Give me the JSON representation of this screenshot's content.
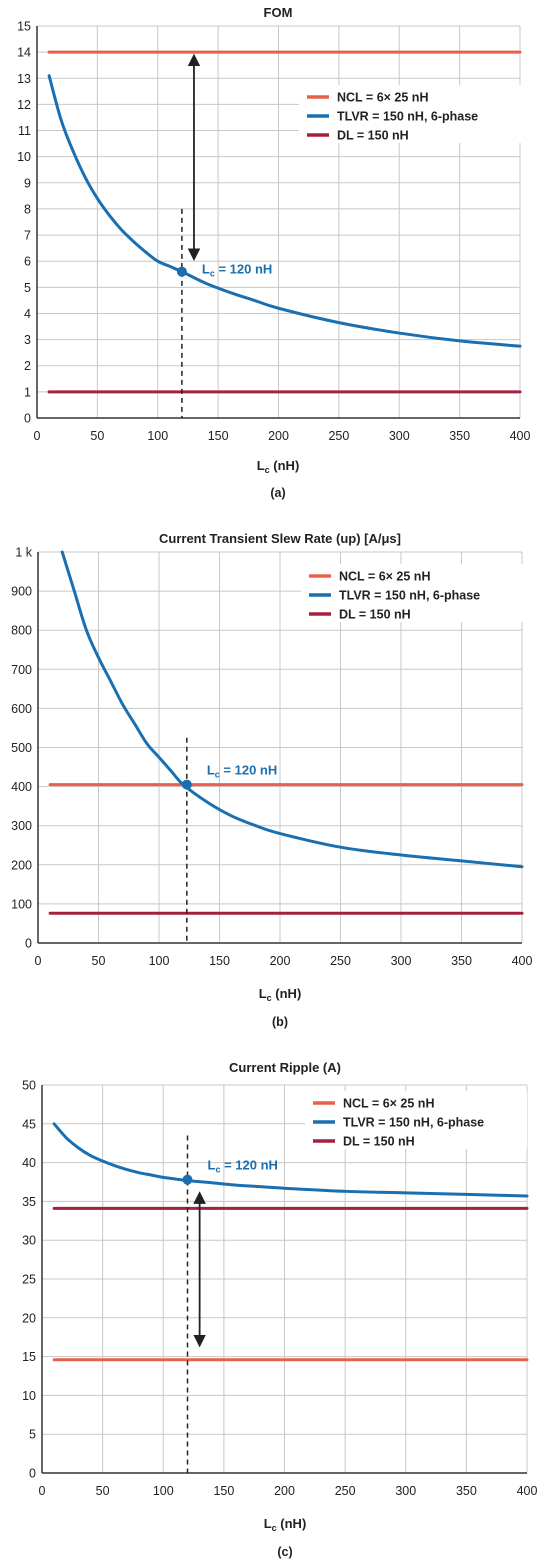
{
  "colors": {
    "ncl": "#e8604c",
    "tlvr": "#1a6fb0",
    "dl": "#a3213f",
    "grid": "#c8c8c8",
    "axis": "#333333",
    "arrow": "#222222"
  },
  "legend": [
    "NCL = 6× 25 nH",
    "TLVR = 150 nH, 6-phase",
    "DL = 150 nH"
  ],
  "chart_data": [
    {
      "type": "line",
      "title": "FOM",
      "xlabel_main": "L",
      "xlabel_sub": "c",
      "xlabel_unit": " (nH)",
      "caption": "(a)",
      "xlim": [
        0,
        400
      ],
      "ylim": [
        0,
        15
      ],
      "xticks": [
        "0",
        "50",
        "100",
        "150",
        "200",
        "250",
        "300",
        "350",
        "400"
      ],
      "yticks": [
        "0",
        "1",
        "2",
        "3",
        "4",
        "5",
        "6",
        "7",
        "8",
        "9",
        "10",
        "11",
        "12",
        "13",
        "14",
        "15"
      ],
      "grid": true,
      "legend_position": "top-right",
      "series": [
        {
          "name": "NCL = 6× 25 nH",
          "x": [
            10,
            400
          ],
          "y": [
            14,
            14
          ]
        },
        {
          "name": "TLVR = 150 nH, 6-phase",
          "x": [
            10,
            20,
            30,
            40,
            50,
            60,
            70,
            80,
            90,
            100,
            110,
            120,
            140,
            160,
            180,
            200,
            250,
            300,
            350,
            400
          ],
          "y": [
            13.1,
            11.4,
            10.2,
            9.2,
            8.4,
            7.75,
            7.2,
            6.75,
            6.35,
            6.0,
            5.8,
            5.6,
            5.15,
            4.8,
            4.5,
            4.2,
            3.65,
            3.25,
            2.95,
            2.75
          ]
        },
        {
          "name": "DL = 150 nH",
          "x": [
            10,
            400
          ],
          "y": [
            1,
            1
          ]
        }
      ],
      "marker": {
        "x": 120,
        "y": 5.6,
        "label_main": "L",
        "label_sub": "c",
        "label_rest": " = 120 nH"
      },
      "dashed_line": {
        "x": 120,
        "y_top": 8
      },
      "arrow": {
        "x": 130,
        "y_from": 14,
        "y_to": 5.95
      }
    },
    {
      "type": "line",
      "title": "Current Transient Slew Rate (up) [A/μs]",
      "xlabel_main": "L",
      "xlabel_sub": "c",
      "xlabel_unit": " (nH)",
      "caption": "(b)",
      "xlim": [
        0,
        400
      ],
      "ylim": [
        0,
        1000
      ],
      "xticks": [
        "0",
        "50",
        "100",
        "150",
        "200",
        "250",
        "300",
        "350",
        "400"
      ],
      "yticks": [
        "0",
        "100",
        "200",
        "300",
        "400",
        "500",
        "600",
        "700",
        "800",
        "900",
        "1 k"
      ],
      "grid": true,
      "legend_position": "top-right",
      "series": [
        {
          "name": "NCL = 6× 25 nH",
          "x": [
            10,
            400
          ],
          "y": [
            405,
            405
          ]
        },
        {
          "name": "TLVR = 150 nH, 6-phase",
          "x": [
            20,
            30,
            40,
            50,
            60,
            70,
            80,
            90,
            100,
            110,
            120,
            140,
            160,
            180,
            200,
            250,
            300,
            350,
            400
          ],
          "y": [
            1000,
            900,
            800,
            730,
            670,
            610,
            560,
            510,
            475,
            440,
            405,
            360,
            325,
            300,
            280,
            245,
            225,
            210,
            195
          ]
        },
        {
          "name": "DL = 150 nH",
          "x": [
            10,
            400
          ],
          "y": [
            76,
            76
          ]
        }
      ],
      "marker": {
        "x": 123,
        "y": 405,
        "label_main": "L",
        "label_sub": "c",
        "label_rest": " = 120 nH"
      },
      "dashed_line": {
        "x": 123,
        "y_top": 525
      }
    },
    {
      "type": "line",
      "title": "Current Ripple (A)",
      "xlabel_main": "L",
      "xlabel_sub": "c",
      "xlabel_unit": " (nH)",
      "caption": "(c)",
      "xlim": [
        0,
        400
      ],
      "ylim": [
        0,
        50
      ],
      "xticks": [
        "0",
        "50",
        "100",
        "150",
        "200",
        "250",
        "300",
        "350",
        "400"
      ],
      "yticks": [
        "0",
        "5",
        "10",
        "15",
        "20",
        "25",
        "30",
        "35",
        "40",
        "45",
        "50"
      ],
      "grid": true,
      "legend_position": "top-right",
      "series": [
        {
          "name": "NCL = 6× 25 nH",
          "x": [
            10,
            400
          ],
          "y": [
            14.6,
            14.6
          ]
        },
        {
          "name": "TLVR = 150 nH, 6-phase",
          "x": [
            10,
            20,
            30,
            40,
            50,
            60,
            70,
            80,
            90,
            100,
            120,
            140,
            160,
            180,
            200,
            250,
            300,
            350,
            400
          ],
          "y": [
            45,
            43.2,
            41.9,
            40.9,
            40.2,
            39.6,
            39.1,
            38.7,
            38.4,
            38.1,
            37.7,
            37.4,
            37.1,
            36.9,
            36.7,
            36.3,
            36.1,
            35.9,
            35.7
          ]
        },
        {
          "name": "DL = 150 nH",
          "x": [
            10,
            400
          ],
          "y": [
            34.1,
            34.1
          ]
        }
      ],
      "marker": {
        "x": 120,
        "y": 37.8,
        "label_main": "L",
        "label_sub": "c",
        "label_rest": " = 120 nH"
      },
      "dashed_line": {
        "x": 120,
        "y_top": 43.5
      },
      "arrow": {
        "x": 130,
        "y_from": 36.5,
        "y_to": 16
      }
    }
  ]
}
